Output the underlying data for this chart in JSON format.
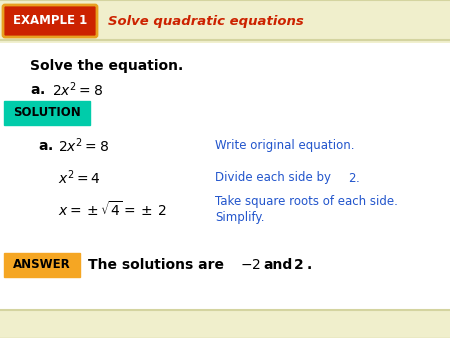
{
  "bg_color": "#ffffff",
  "header_bg": "#f0efcc",
  "header_line_color": "#d4d4a0",
  "example_box_color": "#cc2200",
  "example_box_border": "#e8a020",
  "example_box_text": "EXAMPLE 1",
  "example_box_text_color": "#ffffff",
  "header_title": "Solve quadratic equations",
  "header_title_color": "#cc2200",
  "solve_label": "Solve the equation.",
  "solution_box_color": "#00ccaa",
  "solution_text": "SOLUTION",
  "solution_text_color": "#000000",
  "step1_comment": "Write original equation.",
  "step2_comment_prefix": "Divide each side by ",
  "step2_comment_num": "2",
  "step2_comment_suffix": ".",
  "step3_comment_line1": "Take square roots of each side.",
  "step3_comment_line2": "Simplify.",
  "answer_box_color": "#f5a623",
  "answer_text": "ANSWER",
  "answer_text_color": "#000000",
  "comment_color": "#2255cc",
  "math_color": "#000000",
  "bold_label_color": "#000000",
  "bottom_stripe_color": "#f0efcc"
}
